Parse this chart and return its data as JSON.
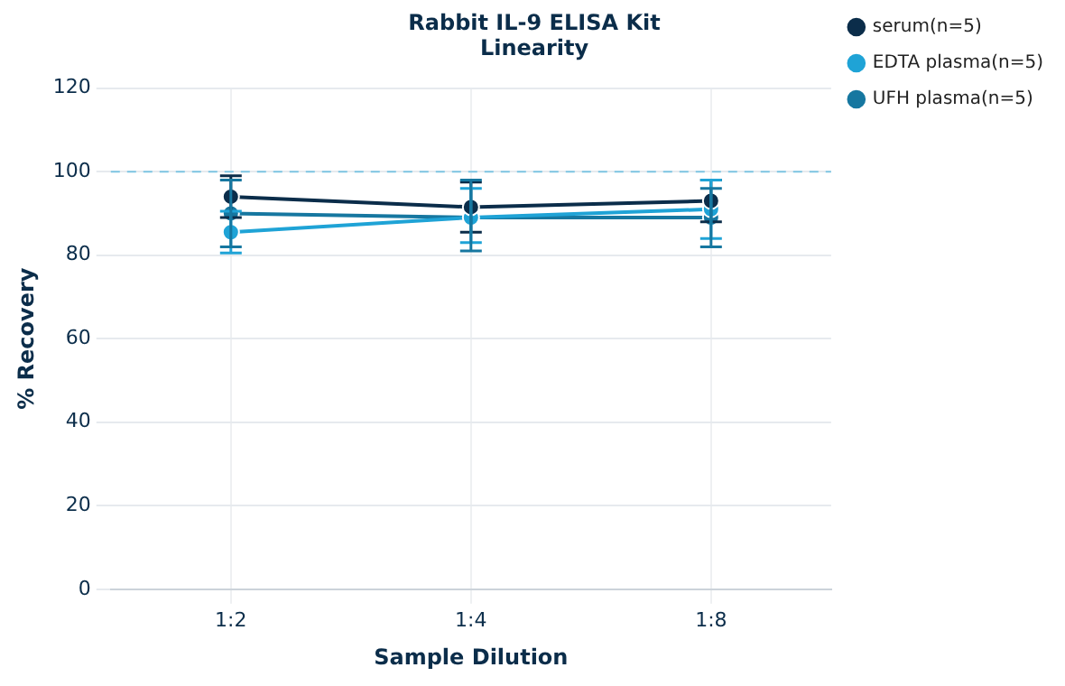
{
  "chart_data": {
    "type": "line",
    "title": "Rabbit IL-9 ELISA Kit",
    "subtitle": "Linearity",
    "xlabel": "Sample Dilution",
    "ylabel": "% Recovery",
    "categories": [
      "1:2",
      "1:4",
      "1:8"
    ],
    "series": [
      {
        "name": "serum(n=5)",
        "color": "#0b2d4a",
        "values": [
          94,
          91.5,
          93
        ],
        "errors": [
          5,
          6,
          5
        ]
      },
      {
        "name": "EDTA plasma(n=5)",
        "color": "#1fa3d6",
        "values": [
          85.5,
          89,
          91
        ],
        "errors": [
          5,
          [
            83,
            96
          ],
          7
        ]
      },
      {
        "name": "UFH plasma(n=5)",
        "color": "#1677a0",
        "values": [
          90,
          89,
          89
        ],
        "errors": [
          8,
          [
            81,
            98
          ],
          7
        ]
      }
    ],
    "ylim": [
      0,
      120
    ],
    "yticks": [
      0,
      20,
      40,
      60,
      80,
      100,
      120
    ],
    "grid": true,
    "legend": "top right",
    "marker": "circle",
    "line_style": "solid",
    "ref_lines": [
      {
        "axis": "y",
        "value": 100,
        "color": "#7fc6e3",
        "line_style": "dashed"
      }
    ]
  }
}
